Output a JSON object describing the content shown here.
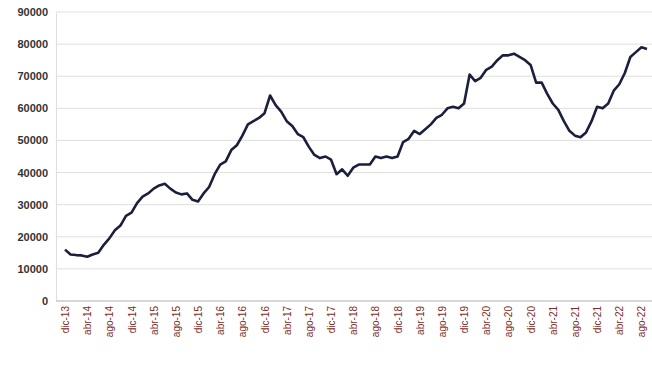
{
  "chart_data": {
    "type": "line",
    "categories": [
      "dic-13",
      null,
      null,
      null,
      "abr-14",
      null,
      null,
      null,
      "ago-14",
      null,
      null,
      null,
      "dic-14",
      null,
      null,
      null,
      "abr-15",
      null,
      null,
      null,
      "ago-15",
      null,
      null,
      null,
      "dic-15",
      null,
      null,
      null,
      "abr-16",
      null,
      null,
      null,
      "ago-16",
      null,
      null,
      null,
      "dic-16",
      null,
      null,
      null,
      "abr-17",
      null,
      null,
      null,
      "ago-17",
      null,
      null,
      null,
      "dic-17",
      null,
      null,
      null,
      "abr-18",
      null,
      null,
      null,
      "ago-18",
      null,
      null,
      null,
      "dic-18",
      null,
      null,
      null,
      "abr-19",
      null,
      null,
      null,
      "ago-19",
      null,
      null,
      null,
      "dic-19",
      null,
      null,
      null,
      "abr-20",
      null,
      null,
      null,
      "ago-20",
      null,
      null,
      null,
      "dic-20",
      null,
      null,
      null,
      "abr-21",
      null,
      null,
      null,
      "ago-21",
      null,
      null,
      null,
      "dic-21",
      null,
      null,
      null,
      "abr-22",
      null,
      null,
      null,
      "ago-22",
      null
    ],
    "values": [
      16000,
      14500,
      14300,
      14200,
      13800,
      14500,
      15000,
      17500,
      19500,
      22000,
      23500,
      26500,
      27500,
      30500,
      32500,
      33500,
      35000,
      36000,
      36500,
      35000,
      33800,
      33200,
      33500,
      31500,
      31000,
      33500,
      35500,
      39500,
      42500,
      43500,
      47000,
      48500,
      51500,
      55000,
      56000,
      57000,
      58500,
      64000,
      61000,
      59000,
      56000,
      54500,
      52000,
      51000,
      48000,
      45500,
      44500,
      45000,
      44000,
      39500,
      41000,
      39000,
      41500,
      42500,
      42500,
      42500,
      45000,
      44500,
      45000,
      44500,
      45000,
      49500,
      50500,
      53000,
      52000,
      53500,
      55000,
      57000,
      58000,
      60000,
      60500,
      60000,
      61500,
      70500,
      68500,
      69500,
      72000,
      73000,
      75000,
      76500,
      76500,
      77000,
      76000,
      75000,
      73500,
      68000,
      68000,
      64500,
      61500,
      59500,
      56000,
      53000,
      51500,
      51000,
      52500,
      56000,
      60500,
      60000,
      61500,
      65500,
      67500,
      71000,
      76000,
      77500,
      79000,
      78500
    ],
    "color": "#1b1f3b",
    "ylim": [
      0,
      90000
    ],
    "yticks": [
      0,
      10000,
      20000,
      30000,
      40000,
      50000,
      60000,
      70000,
      80000,
      90000
    ],
    "grid": true
  }
}
